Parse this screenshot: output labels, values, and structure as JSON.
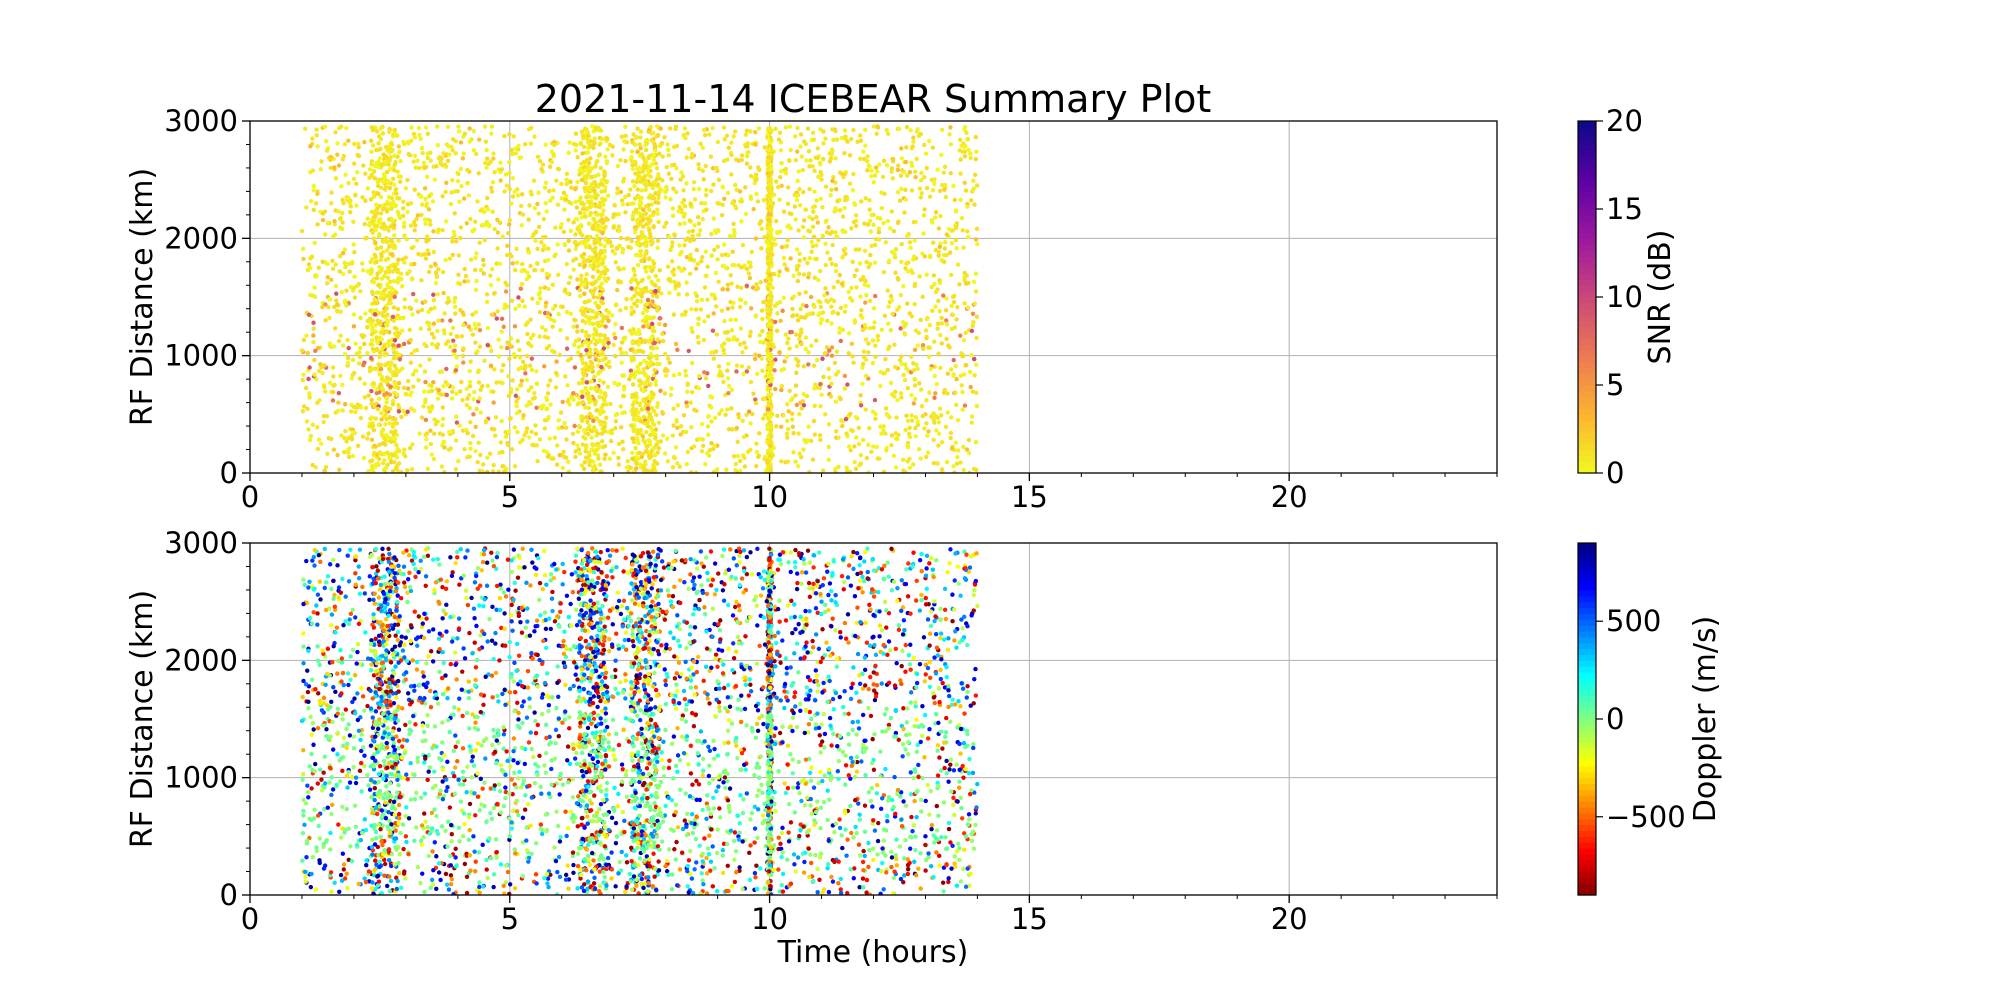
{
  "chart_data": {
    "title": "2021-11-14 ICEBEAR Summary Plot",
    "x_axis": {
      "label": "Time (hours)",
      "range": [
        0,
        24
      ],
      "major_ticks": [
        0,
        5,
        10,
        15,
        20
      ],
      "minor_step": 1,
      "grid": true
    },
    "panels": [
      {
        "id": "snr",
        "type": "scatter",
        "ylabel": "RF Distance (km)",
        "ylim": [
          0,
          3000
        ],
        "yticks": [
          0,
          1000,
          2000,
          3000
        ],
        "grid": true,
        "color_variable": "SNR",
        "colorbar": {
          "label": "SNR (dB)",
          "range": [
            0,
            20
          ],
          "ticks": [
            0,
            5,
            10,
            15,
            20
          ],
          "tick_labels": [
            "0",
            "5",
            "10",
            "15",
            "20"
          ],
          "colormap": "plasma_r",
          "stops": [
            "#f0f921",
            "#fdb42f",
            "#ed7953",
            "#cc4778",
            "#9c179e",
            "#5c01a6",
            "#0d0887"
          ]
        },
        "observation_window_hours": [
          1.0,
          14.0
        ],
        "dense_bands_hours": [
          2.6,
          6.6,
          7.6,
          10.0
        ],
        "points": [
          [
            1.2,
            2850,
            1
          ],
          [
            1.3,
            2400,
            1
          ],
          [
            1.4,
            1800,
            2
          ],
          [
            1.5,
            1500,
            3
          ],
          [
            1.6,
            900,
            1
          ],
          [
            1.7,
            600,
            2
          ],
          [
            1.8,
            2300,
            1
          ],
          [
            1.9,
            300,
            1
          ],
          [
            2.0,
            1250,
            4
          ],
          [
            2.1,
            2700,
            1
          ],
          [
            2.2,
            1100,
            2
          ],
          [
            2.3,
            400,
            1
          ],
          [
            2.45,
            1450,
            3
          ],
          [
            2.55,
            2950,
            1
          ],
          [
            2.6,
            2500,
            1
          ],
          [
            2.62,
            2000,
            1
          ],
          [
            2.65,
            1600,
            2
          ],
          [
            2.68,
            1200,
            3
          ],
          [
            2.7,
            800,
            1
          ],
          [
            2.72,
            350,
            1
          ],
          [
            2.75,
            1850,
            1
          ],
          [
            2.8,
            2650,
            1
          ],
          [
            2.9,
            1000,
            4
          ],
          [
            3.0,
            500,
            1
          ],
          [
            3.1,
            1400,
            2
          ],
          [
            3.3,
            2200,
            1
          ],
          [
            3.5,
            700,
            1
          ],
          [
            3.7,
            1300,
            5
          ],
          [
            3.9,
            2750,
            1
          ],
          [
            4.1,
            1050,
            3
          ],
          [
            4.3,
            500,
            6
          ],
          [
            4.5,
            1700,
            2
          ],
          [
            4.7,
            1350,
            4
          ],
          [
            4.9,
            2400,
            1
          ],
          [
            5.1,
            1250,
            5
          ],
          [
            5.3,
            850,
            7
          ],
          [
            5.5,
            2050,
            1
          ],
          [
            5.7,
            1450,
            3
          ],
          [
            5.9,
            950,
            4
          ],
          [
            6.1,
            2550,
            1
          ],
          [
            6.3,
            1650,
            2
          ],
          [
            6.5,
            2900,
            1
          ],
          [
            6.55,
            2300,
            1
          ],
          [
            6.6,
            1900,
            1
          ],
          [
            6.62,
            1500,
            2
          ],
          [
            6.65,
            1100,
            2
          ],
          [
            6.68,
            700,
            1
          ],
          [
            6.7,
            250,
            1
          ],
          [
            6.75,
            2600,
            1
          ],
          [
            6.9,
            1300,
            3
          ],
          [
            7.1,
            2100,
            1
          ],
          [
            7.3,
            800,
            2
          ],
          [
            7.5,
            2800,
            1
          ],
          [
            7.55,
            2200,
            1
          ],
          [
            7.6,
            1750,
            1
          ],
          [
            7.62,
            1300,
            2
          ],
          [
            7.65,
            900,
            3
          ],
          [
            7.7,
            500,
            1
          ],
          [
            7.8,
            1600,
            2
          ],
          [
            7.9,
            700,
            5
          ],
          [
            8.0,
            2400,
            1
          ],
          [
            8.2,
            1100,
            3
          ],
          [
            8.4,
            600,
            6
          ],
          [
            8.6,
            1900,
            2
          ],
          [
            8.8,
            850,
            8
          ],
          [
            9.0,
            2300,
            1
          ],
          [
            9.2,
            1400,
            3
          ],
          [
            9.4,
            500,
            2
          ],
          [
            9.6,
            1700,
            1
          ],
          [
            9.8,
            1000,
            4
          ],
          [
            10.0,
            2600,
            1
          ],
          [
            10.0,
            1900,
            2
          ],
          [
            10.0,
            1400,
            3
          ],
          [
            10.2,
            2900,
            1
          ],
          [
            10.4,
            1200,
            9
          ],
          [
            10.6,
            600,
            3
          ],
          [
            10.8,
            1500,
            4
          ],
          [
            11.0,
            2500,
            1
          ],
          [
            11.2,
            1000,
            5
          ],
          [
            11.4,
            400,
            2
          ],
          [
            11.6,
            1800,
            1
          ],
          [
            11.8,
            1250,
            6
          ],
          [
            12.0,
            2200,
            1
          ],
          [
            12.2,
            850,
            3
          ],
          [
            12.4,
            1350,
            7
          ],
          [
            12.6,
            2650,
            1
          ],
          [
            12.8,
            1050,
            4
          ],
          [
            13.0,
            500,
            2
          ],
          [
            13.2,
            1900,
            1
          ],
          [
            13.4,
            1300,
            6
          ],
          [
            13.6,
            800,
            3
          ],
          [
            13.8,
            1400,
            5
          ],
          [
            13.9,
            2400,
            1
          ]
        ]
      },
      {
        "id": "doppler",
        "type": "scatter",
        "ylabel": "RF Distance (km)",
        "ylim": [
          0,
          3000
        ],
        "yticks": [
          0,
          1000,
          2000,
          3000
        ],
        "grid": true,
        "color_variable": "Doppler",
        "colorbar": {
          "label": "Doppler (m/s)",
          "range": [
            -900,
            900
          ],
          "ticks": [
            -500,
            0,
            500
          ],
          "tick_labels": [
            "−500",
            "0",
            "500"
          ],
          "colormap": "jet_r",
          "stops": [
            "#800000",
            "#ff0000",
            "#ff8000",
            "#ffff00",
            "#80ff80",
            "#00ffff",
            "#0080ff",
            "#0000ff",
            "#000080"
          ]
        },
        "observation_window_hours": [
          1.0,
          14.0
        ],
        "dense_bands_hours": [
          2.6,
          6.6,
          7.6,
          10.0
        ],
        "points": [
          [
            1.2,
            2850,
            600
          ],
          [
            1.3,
            2400,
            -800
          ],
          [
            1.4,
            1800,
            -300
          ],
          [
            1.5,
            1500,
            50
          ],
          [
            1.6,
            900,
            700
          ],
          [
            1.7,
            600,
            -650
          ],
          [
            1.8,
            2300,
            850
          ],
          [
            1.9,
            300,
            -900
          ],
          [
            2.0,
            1250,
            20
          ],
          [
            2.1,
            2700,
            400
          ],
          [
            2.2,
            1100,
            -100
          ],
          [
            2.3,
            400,
            750
          ],
          [
            2.45,
            1450,
            -50
          ],
          [
            2.55,
            2950,
            800
          ],
          [
            2.6,
            2500,
            -700
          ],
          [
            2.62,
            2000,
            300
          ],
          [
            2.65,
            1600,
            -500
          ],
          [
            2.68,
            1200,
            650
          ],
          [
            2.7,
            800,
            -850
          ],
          [
            2.72,
            350,
            500
          ],
          [
            2.75,
            1850,
            -200
          ],
          [
            2.8,
            2650,
            900
          ],
          [
            2.9,
            1000,
            10
          ],
          [
            3.0,
            500,
            -600
          ],
          [
            3.1,
            1400,
            80
          ],
          [
            3.3,
            2200,
            700
          ],
          [
            3.5,
            700,
            -400
          ],
          [
            3.7,
            1300,
            0
          ],
          [
            3.9,
            2750,
            -800
          ],
          [
            4.1,
            1050,
            40
          ],
          [
            4.3,
            500,
            600
          ],
          [
            4.5,
            1700,
            -750
          ],
          [
            4.7,
            1350,
            30
          ],
          [
            4.9,
            2400,
            850
          ],
          [
            5.1,
            1250,
            -20
          ],
          [
            5.3,
            850,
            100
          ],
          [
            5.5,
            2050,
            -650
          ],
          [
            5.7,
            1450,
            60
          ],
          [
            5.9,
            950,
            -30
          ],
          [
            6.1,
            2550,
            700
          ],
          [
            6.3,
            1650,
            -400
          ],
          [
            6.5,
            2900,
            800
          ],
          [
            6.55,
            2300,
            -850
          ],
          [
            6.6,
            1900,
            400
          ],
          [
            6.62,
            1500,
            -600
          ],
          [
            6.65,
            1100,
            750
          ],
          [
            6.68,
            700,
            -300
          ],
          [
            6.7,
            250,
            900
          ],
          [
            6.75,
            2600,
            -750
          ],
          [
            6.9,
            1300,
            0
          ],
          [
            7.1,
            2100,
            550
          ],
          [
            7.3,
            800,
            -700
          ],
          [
            7.5,
            2800,
            850
          ],
          [
            7.55,
            2200,
            -500
          ],
          [
            7.6,
            1750,
            700
          ],
          [
            7.62,
            1300,
            -850
          ],
          [
            7.65,
            900,
            300
          ],
          [
            7.7,
            500,
            -650
          ],
          [
            7.8,
            1600,
            600
          ],
          [
            7.9,
            700,
            -20
          ],
          [
            8.0,
            2400,
            -800
          ],
          [
            8.2,
            1100,
            50
          ],
          [
            8.4,
            600,
            750
          ],
          [
            8.6,
            1900,
            -550
          ],
          [
            8.8,
            850,
            40
          ],
          [
            9.0,
            2300,
            800
          ],
          [
            9.2,
            1400,
            -60
          ],
          [
            9.4,
            500,
            650
          ],
          [
            9.6,
            1700,
            -700
          ],
          [
            9.8,
            1000,
            30
          ],
          [
            10.0,
            2600,
            -850
          ],
          [
            10.0,
            1900,
            -900
          ],
          [
            10.0,
            1400,
            -880
          ],
          [
            10.2,
            2900,
            700
          ],
          [
            10.4,
            1200,
            10
          ],
          [
            10.6,
            600,
            -600
          ],
          [
            10.8,
            1500,
            50
          ],
          [
            11.0,
            2500,
            400
          ],
          [
            11.2,
            1000,
            -30
          ],
          [
            11.4,
            400,
            850
          ],
          [
            11.6,
            1800,
            -700
          ],
          [
            11.8,
            1250,
            20
          ],
          [
            12.0,
            2200,
            800
          ],
          [
            12.2,
            850,
            -500
          ],
          [
            12.4,
            1350,
            0
          ],
          [
            12.6,
            2650,
            -800
          ],
          [
            12.8,
            1050,
            40
          ],
          [
            13.0,
            500,
            700
          ],
          [
            13.2,
            1900,
            -650
          ],
          [
            13.4,
            1300,
            30
          ],
          [
            13.6,
            800,
            -750
          ],
          [
            13.8,
            1400,
            60
          ],
          [
            13.9,
            2400,
            800
          ]
        ]
      }
    ]
  }
}
